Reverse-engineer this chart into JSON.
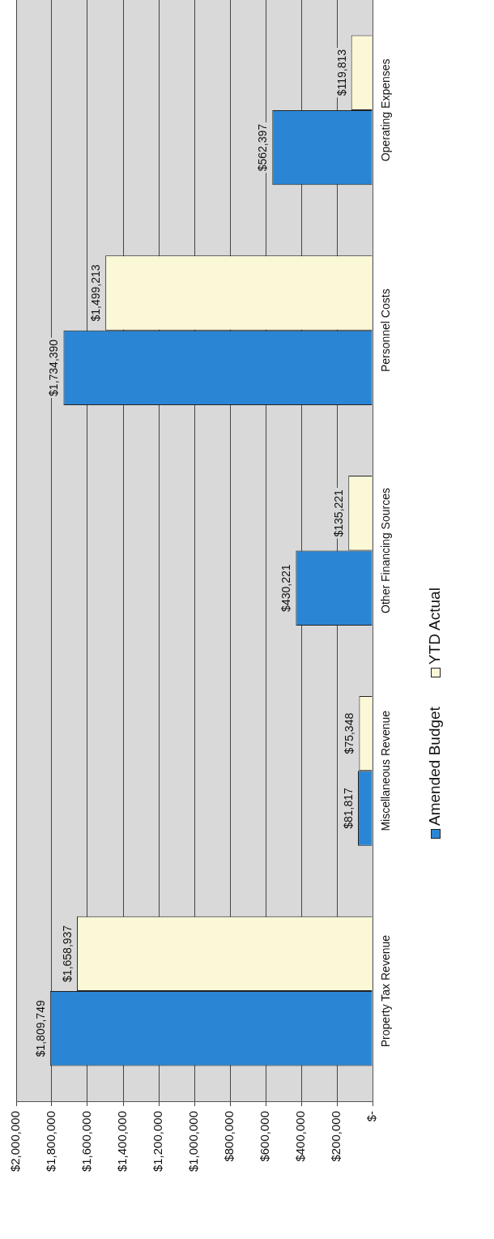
{
  "chart_data": {
    "type": "bar",
    "orientation": "horizontal",
    "categories": [
      "Operating Expenses",
      "Personnel Costs",
      "Other Financing Sources",
      "Miscellaneous Revenue",
      "Property Tax Revenue"
    ],
    "series": [
      {
        "name": "Amended Budget",
        "color": "#2a86d4",
        "values": [
          562397,
          1734390,
          430221,
          81817,
          1809749
        ],
        "value_labels": [
          "$562,397",
          "$1,734,390",
          "$430,221",
          "$81,817",
          "$1,809,749"
        ]
      },
      {
        "name": "YTD Actual",
        "color": "#fbf8d8",
        "values": [
          119813,
          1499213,
          135221,
          75348,
          1658937
        ],
        "value_labels": [
          "$119,813",
          "$1,499,213",
          "$135,221",
          "$75,348",
          "$1,658,937"
        ]
      }
    ],
    "xlim": [
      2000000,
      0
    ],
    "xticks": [
      {
        "value": 2000000,
        "label": "$2,000,000"
      },
      {
        "value": 1800000,
        "label": "$1,800,000"
      },
      {
        "value": 1600000,
        "label": "$1,600,000"
      },
      {
        "value": 1400000,
        "label": "$1,400,000"
      },
      {
        "value": 1200000,
        "label": "$1,200,000"
      },
      {
        "value": 1000000,
        "label": "$1,000,000"
      },
      {
        "value": 800000,
        "label": "$800,000"
      },
      {
        "value": 600000,
        "label": "$600,000"
      },
      {
        "value": 400000,
        "label": "$400,000"
      },
      {
        "value": 200000,
        "label": "$200,000"
      },
      {
        "value": 0,
        "label": "$-"
      }
    ],
    "grid": "x",
    "legend": "right"
  }
}
